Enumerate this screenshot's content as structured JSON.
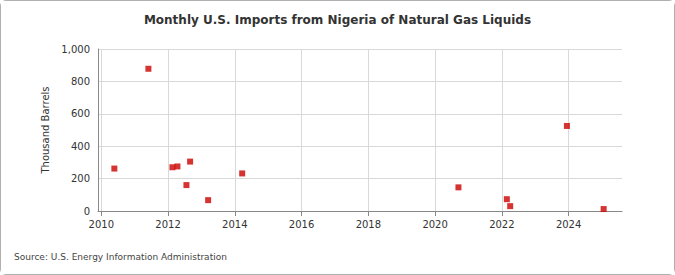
{
  "chart_data": {
    "type": "scatter",
    "title": "Monthly U.S. Imports from Nigeria of Natural Gas Liquids",
    "ylabel": "Thousand Barrels",
    "source": "Source: U.S. Energy Information Administration",
    "x": [
      2010.39,
      2011.41,
      2012.13,
      2012.28,
      2012.55,
      2012.66,
      2013.2,
      2014.22,
      2020.7,
      2022.15,
      2022.25,
      2023.95,
      2025.05
    ],
    "values": [
      262,
      878,
      270,
      275,
      160,
      305,
      67,
      232,
      146,
      73,
      30,
      525,
      12
    ],
    "color": "#cc0000",
    "marker": "square",
    "xlim": [
      2009.9,
      2025.6
    ],
    "xticks": [
      2010,
      2012,
      2014,
      2016,
      2018,
      2020,
      2022,
      2024
    ],
    "ylim": [
      0,
      1000
    ],
    "yticks": [
      0,
      200,
      400,
      600,
      800,
      {
        "value": 1000,
        "label": "1,000"
      }
    ],
    "grid": true
  }
}
